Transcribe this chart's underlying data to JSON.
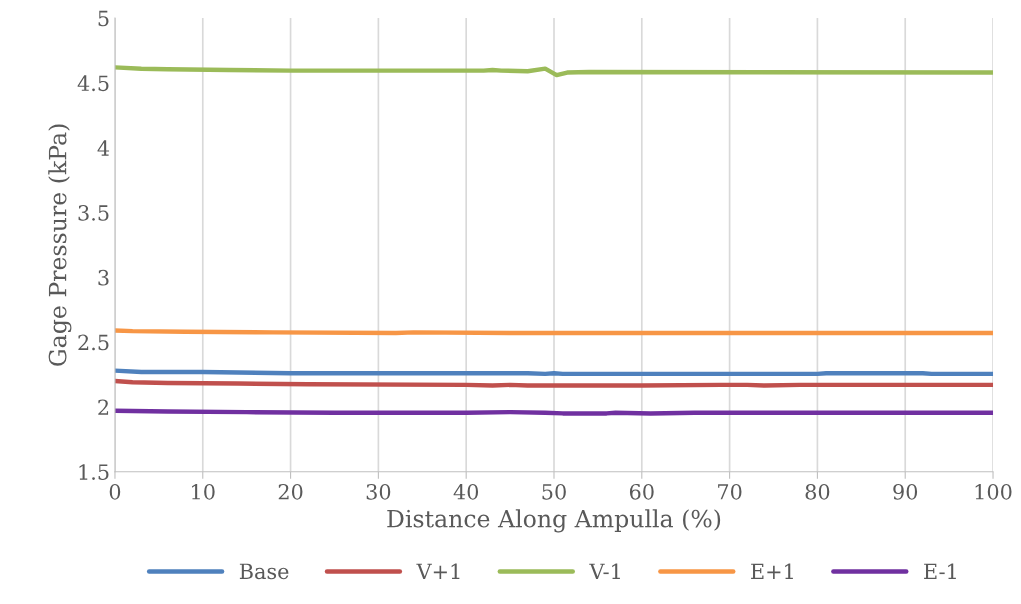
{
  "chart_data": {
    "type": "line",
    "xlabel": "Distance Along Ampulla (%)",
    "ylabel": "Gage Pressure (kPa)",
    "xlim": [
      0,
      100
    ],
    "xticks": [
      0,
      10,
      20,
      30,
      40,
      50,
      60,
      70,
      80,
      90,
      100
    ],
    "ylim": [
      1.5,
      5
    ],
    "yticks": [
      1.5,
      2,
      2.5,
      3,
      3.5,
      4,
      4.5,
      5
    ],
    "grid": "x",
    "legend": "bottom",
    "marker": "none",
    "line_style": "solid",
    "series": [
      {
        "name": "Base",
        "color": "#4f81bd",
        "x": [
          0,
          3,
          10,
          20,
          30,
          40,
          47,
          49,
          50,
          51,
          60,
          70,
          80,
          81,
          92,
          93,
          100
        ],
        "values": [
          2.28,
          2.27,
          2.27,
          2.26,
          2.26,
          2.26,
          2.26,
          2.255,
          2.26,
          2.255,
          2.255,
          2.255,
          2.255,
          2.26,
          2.26,
          2.255,
          2.255
        ]
      },
      {
        "name": "V+1",
        "color": "#c0504d",
        "x": [
          0,
          2,
          6,
          14,
          22,
          40,
          43,
          45,
          47,
          60,
          69,
          72,
          74,
          78,
          100
        ],
        "values": [
          2.2,
          2.19,
          2.185,
          2.18,
          2.175,
          2.17,
          2.165,
          2.17,
          2.165,
          2.165,
          2.17,
          2.17,
          2.165,
          2.17,
          2.17
        ]
      },
      {
        "name": "V-1",
        "color": "#9bbb59",
        "x": [
          0,
          3,
          6,
          13,
          20,
          42,
          43,
          44,
          47,
          49,
          50.3,
          51.5,
          54,
          100
        ],
        "values": [
          4.62,
          4.61,
          4.605,
          4.6,
          4.595,
          4.595,
          4.6,
          4.595,
          4.59,
          4.61,
          4.56,
          4.58,
          4.585,
          4.58
        ]
      },
      {
        "name": "E+1",
        "color": "#f79646",
        "x": [
          0,
          2,
          8,
          18,
          32,
          34,
          47,
          100
        ],
        "values": [
          2.59,
          2.585,
          2.58,
          2.575,
          2.57,
          2.575,
          2.57,
          2.57
        ]
      },
      {
        "name": "E-1",
        "color": "#7030a0",
        "x": [
          0,
          6,
          15,
          25,
          40,
          45,
          49,
          51,
          56,
          57,
          61,
          66,
          100
        ],
        "values": [
          1.97,
          1.965,
          1.96,
          1.955,
          1.955,
          1.96,
          1.955,
          1.95,
          1.95,
          1.955,
          1.95,
          1.955,
          1.955
        ]
      }
    ]
  }
}
